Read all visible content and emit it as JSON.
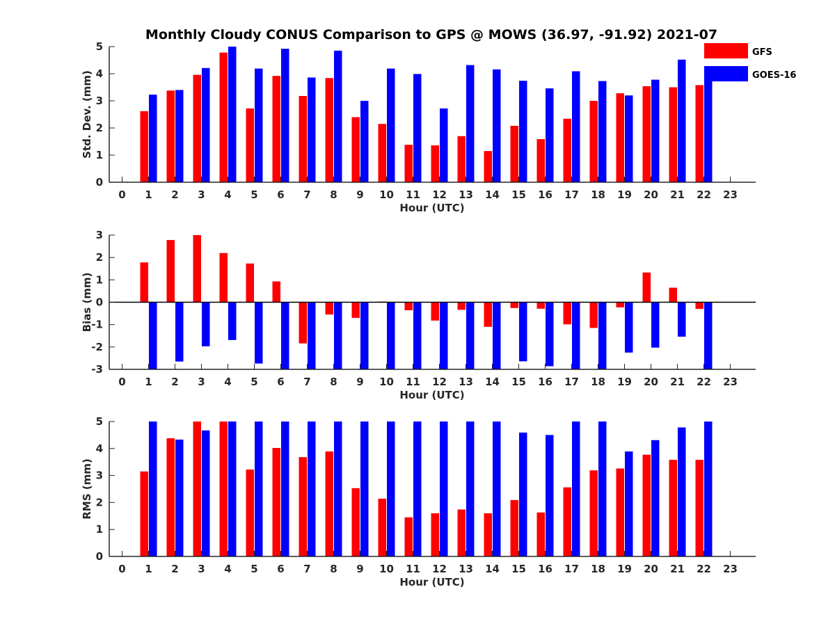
{
  "title": "Monthly Cloudy CONUS Comparison to GPS @ MOWS (36.97, -91.92) 2021-07",
  "colors": {
    "GFS": "#ff0000",
    "GOES-16": "#0000ff",
    "axis": "#262626"
  },
  "legend": {
    "placement": "top-right",
    "entries": [
      "GFS",
      "GOES-16"
    ]
  },
  "chart_data": [
    {
      "type": "bar",
      "xlabel": "Hour (UTC)",
      "ylabel": "Std. Dev. (mm)",
      "ylim": [
        0,
        5
      ],
      "yticks": [
        0,
        1,
        2,
        3,
        4,
        5
      ],
      "categories": [
        "0",
        "1",
        "2",
        "3",
        "4",
        "5",
        "6",
        "7",
        "8",
        "9",
        "10",
        "11",
        "12",
        "13",
        "14",
        "15",
        "16",
        "17",
        "18",
        "19",
        "20",
        "21",
        "22",
        "23"
      ],
      "series": [
        {
          "name": "GFS",
          "values": [
            null,
            2.62,
            3.38,
            3.96,
            4.78,
            2.72,
            3.92,
            3.18,
            3.84,
            2.4,
            2.15,
            1.38,
            1.36,
            1.7,
            1.15,
            2.08,
            1.59,
            2.34,
            3.0,
            3.28,
            3.54,
            3.5,
            3.58,
            null
          ]
        },
        {
          "name": "GOES-16",
          "values": [
            null,
            3.23,
            3.4,
            4.21,
            5.0,
            4.19,
            4.92,
            3.86,
            4.85,
            3.0,
            4.19,
            3.99,
            2.72,
            4.32,
            4.16,
            3.74,
            3.46,
            4.09,
            3.73,
            3.2,
            3.78,
            4.52,
            4.07,
            null
          ]
        }
      ]
    },
    {
      "type": "bar",
      "xlabel": "Hour (UTC)",
      "ylabel": "Bias (mm)",
      "ylim": [
        -3,
        3
      ],
      "yticks": [
        -3,
        -2,
        -1,
        0,
        1,
        2,
        3
      ],
      "zero_line": true,
      "categories": [
        "0",
        "1",
        "2",
        "3",
        "4",
        "5",
        "6",
        "7",
        "8",
        "9",
        "10",
        "11",
        "12",
        "13",
        "14",
        "15",
        "16",
        "17",
        "18",
        "19",
        "20",
        "21",
        "22",
        "23"
      ],
      "series": [
        {
          "name": "GFS",
          "values": [
            null,
            1.78,
            2.78,
            3.0,
            2.2,
            1.73,
            0.93,
            -1.84,
            -0.55,
            -0.7,
            0.03,
            -0.36,
            -0.82,
            -0.34,
            -1.1,
            -0.26,
            -0.29,
            -0.99,
            -1.15,
            -0.23,
            1.33,
            0.65,
            -0.3,
            null
          ]
        },
        {
          "name": "GOES-16",
          "values": [
            null,
            -3.0,
            -2.65,
            -1.97,
            -1.69,
            -2.74,
            -3.0,
            -3.0,
            -3.0,
            -3.0,
            -3.0,
            -3.0,
            -3.0,
            -3.0,
            -3.0,
            -2.64,
            -2.86,
            -3.0,
            -3.0,
            -2.25,
            -2.03,
            -1.54,
            -3.0,
            null
          ]
        }
      ]
    },
    {
      "type": "bar",
      "xlabel": "Hour (UTC)",
      "ylabel": "RMS (mm)",
      "ylim": [
        0,
        5
      ],
      "yticks": [
        0,
        1,
        2,
        3,
        4,
        5
      ],
      "categories": [
        "0",
        "1",
        "2",
        "3",
        "4",
        "5",
        "6",
        "7",
        "8",
        "9",
        "10",
        "11",
        "12",
        "13",
        "14",
        "15",
        "16",
        "17",
        "18",
        "19",
        "20",
        "21",
        "22",
        "23"
      ],
      "series": [
        {
          "name": "GFS",
          "values": [
            null,
            3.15,
            4.38,
            5.0,
            5.0,
            3.22,
            4.02,
            3.68,
            3.89,
            2.53,
            2.14,
            1.45,
            1.6,
            1.74,
            1.6,
            2.09,
            1.63,
            2.56,
            3.19,
            3.26,
            3.77,
            3.58,
            3.58,
            null
          ]
        },
        {
          "name": "GOES-16",
          "values": [
            null,
            5.0,
            4.33,
            4.67,
            5.0,
            5.0,
            5.0,
            5.0,
            5.0,
            5.0,
            5.0,
            5.0,
            5.0,
            5.0,
            5.0,
            4.59,
            4.5,
            5.0,
            5.0,
            3.89,
            4.31,
            4.78,
            5.0,
            null
          ]
        }
      ]
    }
  ]
}
